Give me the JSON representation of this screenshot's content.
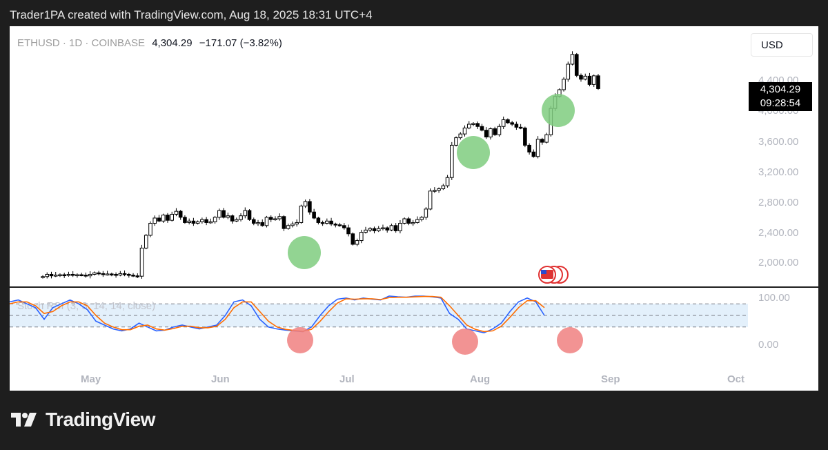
{
  "header": {
    "caption": "Trader1PA created with TradingView.com, Aug 18, 2025 18:31 UTC+4"
  },
  "symbol": {
    "name": "ETHUSD · 1D · COINBASE",
    "last": "4,304.29",
    "change": "−171.07 (−3.82%)"
  },
  "currency": "USD",
  "price_tag": {
    "price": "4,304.29",
    "countdown": "09:28:54"
  },
  "indicator": {
    "label": "Stoch RSI (3, 3, 14, 14, close)"
  },
  "footer": {
    "brand": "TradingView",
    "logo": "tradingview-logo-icon"
  },
  "colors": {
    "up_candle": "#ffffff",
    "down_candle": "#000000",
    "k_line": "#2962ff",
    "d_line": "#ff6d00",
    "green_marker": "#7fcc7f",
    "red_marker": "#f08080",
    "band_fill": "#e3f0fb"
  },
  "chart_data": [
    {
      "type": "candlestick",
      "title": "ETHUSD · 1D · COINBASE",
      "y_ticks": [
        "4,400.00",
        "4,000.00",
        "3,600.00",
        "3,200.00",
        "2,800.00",
        "2,400.00",
        "2,000.00"
      ],
      "x_ticks": [
        "May",
        "Jun",
        "Jul",
        "Aug",
        "Sep",
        "Oct"
      ],
      "ylim": [
        1820,
        4750
      ],
      "approx_closes": [
        1800,
        1830,
        1810,
        1820,
        1825,
        1815,
        1830,
        1820,
        1825,
        1820,
        1810,
        1830,
        1850,
        1840,
        1830,
        1835,
        1830,
        1820,
        1840,
        1830,
        1820,
        1810,
        1805,
        2180,
        2350,
        2510,
        2580,
        2540,
        2620,
        2550,
        2630,
        2670,
        2590,
        2520,
        2540,
        2510,
        2530,
        2560,
        2520,
        2530,
        2590,
        2680,
        2590,
        2610,
        2540,
        2560,
        2610,
        2680,
        2560,
        2510,
        2520,
        2480,
        2590,
        2560,
        2570,
        2600,
        2440,
        2480,
        2500,
        2520,
        2740,
        2800,
        2660,
        2580,
        2520,
        2510,
        2540,
        2500,
        2490,
        2480,
        2450,
        2370,
        2230,
        2280,
        2390,
        2420,
        2440,
        2410,
        2440,
        2450,
        2420,
        2480,
        2410,
        2510,
        2570,
        2510,
        2520,
        2560,
        2590,
        2700,
        2940,
        2950,
        2970,
        3010,
        3120,
        3550,
        3650,
        3700,
        3780,
        3830,
        3840,
        3800,
        3750,
        3660,
        3770,
        3690,
        3800,
        3890,
        3850,
        3830,
        3790,
        3780,
        3550,
        3460,
        3400,
        3630,
        3590,
        3690,
        4040,
        4200,
        4290,
        4430,
        4630,
        4760,
        4480,
        4430,
        4470,
        4360,
        4475,
        4304
      ],
      "markers_green": [
        "Jun low",
        "Aug low",
        "next low"
      ],
      "events": [
        "us-event-icon"
      ]
    },
    {
      "type": "line",
      "title": "Stoch RSI (3, 3, 14, 14, close)",
      "y_ticks": [
        "100.00",
        "0.00"
      ],
      "ylim": [
        0,
        100
      ],
      "bands": [
        20,
        50,
        80
      ],
      "series": [
        {
          "values": [
            85,
            90,
            80,
            70,
            40,
            70,
            80,
            90,
            80,
            65,
            35,
            25,
            15,
            10,
            15,
            30,
            20,
            10,
            12,
            20,
            25,
            20,
            15,
            20,
            25,
            50,
            85,
            90,
            75,
            40,
            20,
            15,
            12,
            10,
            8,
            20,
            50,
            75,
            92,
            95,
            90,
            95,
            92,
            90,
            100,
            98,
            97,
            100,
            100,
            98,
            95,
            55,
            40,
            15,
            10,
            5,
            15,
            30,
            60,
            85,
            95,
            85,
            50
          ]
        },
        {
          "values": [
            80,
            85,
            85,
            75,
            55,
            60,
            75,
            85,
            85,
            75,
            50,
            30,
            20,
            13,
            13,
            22,
            25,
            15,
            12,
            16,
            22,
            22,
            18,
            18,
            22,
            40,
            70,
            85,
            85,
            60,
            35,
            20,
            14,
            11,
            9,
            14,
            35,
            60,
            82,
            93,
            92,
            93,
            93,
            91,
            96,
            97,
            97,
            98,
            99,
            99,
            97,
            75,
            50,
            25,
            14,
            8,
            10,
            22,
            45,
            70,
            88,
            88,
            70
          ]
        }
      ],
      "markers_red": [
        "Jun low",
        "Aug low",
        "next low"
      ]
    }
  ]
}
